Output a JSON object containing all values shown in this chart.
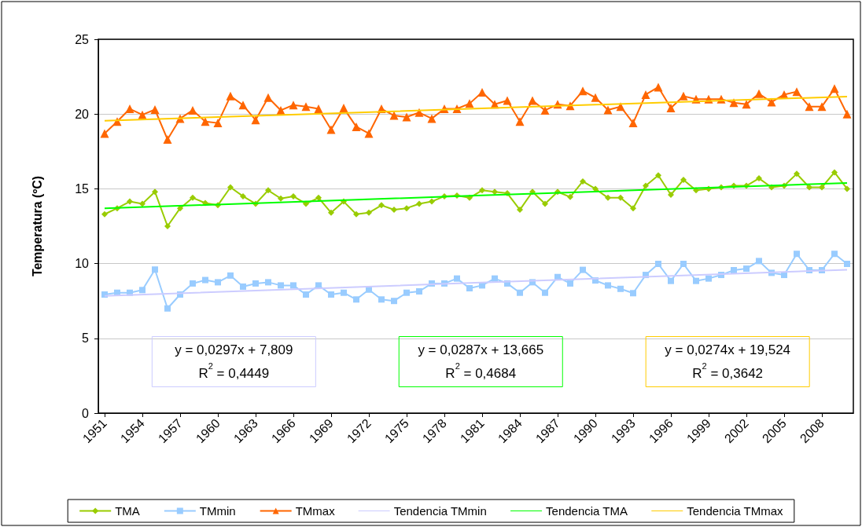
{
  "chart_data": {
    "type": "line",
    "ylabel": "Temperatura (ºC)",
    "x": [
      1951,
      1952,
      1953,
      1954,
      1955,
      1956,
      1957,
      1958,
      1959,
      1960,
      1961,
      1962,
      1963,
      1964,
      1965,
      1966,
      1967,
      1968,
      1969,
      1970,
      1971,
      1972,
      1973,
      1974,
      1975,
      1976,
      1977,
      1978,
      1979,
      1980,
      1981,
      1982,
      1983,
      1984,
      1985,
      1986,
      1987,
      1988,
      1989,
      1990,
      1991,
      1992,
      1993,
      1994,
      1995,
      1996,
      1997,
      1998,
      1999,
      2000,
      2001,
      2002,
      2003,
      2004,
      2005,
      2006,
      2007,
      2008,
      2009,
      2010
    ],
    "xlim": [
      1950.5,
      2010.5
    ],
    "xticks": [
      1951,
      1954,
      1957,
      1960,
      1963,
      1966,
      1969,
      1972,
      1975,
      1978,
      1981,
      1984,
      1987,
      1990,
      1993,
      1996,
      1999,
      2002,
      2005,
      2008
    ],
    "ylim": [
      0,
      25
    ],
    "yticks": [
      0,
      5,
      10,
      15,
      20,
      25
    ],
    "grid": "y",
    "legend": "bottom",
    "series": [
      {
        "name": "TMA",
        "color": "#99cc00",
        "marker": "diamond",
        "values": [
          13.3,
          13.7,
          14.15,
          14.0,
          14.8,
          12.5,
          13.7,
          14.4,
          14.05,
          13.9,
          15.1,
          14.5,
          14.0,
          14.9,
          14.35,
          14.5,
          14.0,
          14.4,
          13.4,
          14.15,
          13.3,
          13.4,
          13.9,
          13.6,
          13.7,
          14.0,
          14.15,
          14.5,
          14.55,
          14.4,
          14.9,
          14.8,
          14.7,
          13.6,
          14.8,
          14.0,
          14.8,
          14.45,
          15.5,
          15.0,
          14.4,
          14.4,
          13.7,
          15.2,
          15.9,
          14.6,
          15.6,
          14.9,
          15.0,
          15.1,
          15.2,
          15.2,
          15.7,
          15.1,
          15.2,
          16.0,
          15.1,
          15.1,
          16.1,
          15.0
        ]
      },
      {
        "name": "TMmin",
        "color": "#99ccff",
        "marker": "square",
        "values": [
          7.93,
          8.05,
          8.05,
          8.23,
          9.6,
          7.0,
          7.93,
          8.67,
          8.9,
          8.75,
          9.2,
          8.46,
          8.67,
          8.75,
          8.54,
          8.54,
          7.93,
          8.54,
          7.93,
          8.05,
          7.6,
          8.26,
          7.6,
          7.5,
          8.05,
          8.14,
          8.67,
          8.67,
          9.0,
          8.35,
          8.54,
          9.0,
          8.67,
          8.05,
          8.75,
          8.05,
          9.1,
          8.67,
          9.58,
          8.87,
          8.54,
          8.31,
          8.02,
          9.24,
          9.98,
          8.84,
          9.98,
          8.84,
          9.0,
          9.24,
          9.56,
          9.66,
          10.17,
          9.38,
          9.24,
          10.65,
          9.56,
          9.56,
          10.65,
          9.98
        ]
      },
      {
        "name": "TMmax",
        "color": "#ff6600",
        "marker": "triangle",
        "values": [
          18.7,
          19.5,
          20.35,
          19.95,
          20.3,
          18.3,
          19.7,
          20.25,
          19.5,
          19.4,
          21.2,
          20.6,
          19.6,
          21.1,
          20.25,
          20.6,
          20.5,
          20.35,
          18.96,
          20.4,
          19.15,
          18.7,
          20.35,
          19.9,
          19.8,
          20.1,
          19.7,
          20.35,
          20.35,
          20.7,
          21.45,
          20.65,
          20.9,
          19.5,
          20.9,
          20.25,
          20.65,
          20.55,
          21.55,
          21.1,
          20.27,
          20.5,
          19.4,
          21.3,
          21.8,
          20.4,
          21.2,
          21.0,
          21.0,
          21.0,
          20.76,
          20.66,
          21.36,
          20.8,
          21.3,
          21.5,
          20.5,
          20.5,
          21.7,
          20.0
        ]
      },
      {
        "name": "Tendencia TMmin",
        "color": "#ccccff",
        "marker": "none",
        "x": [
          1951,
          1980,
          2010
        ],
        "values": [
          7.84,
          8.7,
          9.59
        ]
      },
      {
        "name": "Tendencia TMA",
        "color": "#00ff00",
        "marker": "none",
        "x": [
          1951,
          1980,
          2010
        ],
        "values": [
          13.69,
          14.53,
          15.39
        ]
      },
      {
        "name": "Tendencia TMmax",
        "color": "#ffcc00",
        "marker": "none",
        "x": [
          1951,
          1980,
          2010
        ],
        "values": [
          19.55,
          20.35,
          21.17
        ]
      }
    ],
    "annotations": [
      "y = 0,0297x + 7,809\nR$^{2}$ = 0,4449",
      "y = 0,0287x + 13,665\nR$^{2}$ = 0,4684",
      "y = 0,0274x + 19,524\nR$^{2}$ = 0,3642"
    ]
  }
}
